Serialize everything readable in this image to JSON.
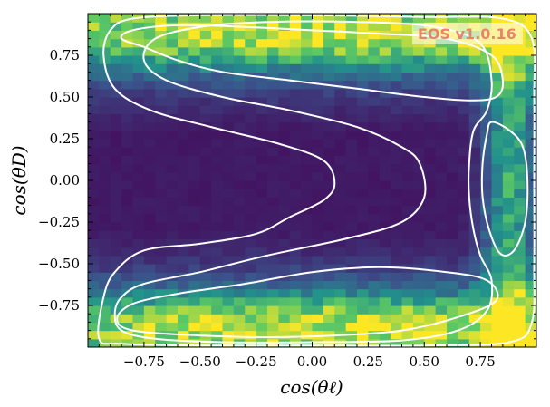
{
  "chart_data": {
    "type": "heatmap",
    "title": "",
    "xlabel": "cos(θℓ)",
    "ylabel": "cos(θD)",
    "xlim": [
      -1,
      1
    ],
    "ylim": [
      -1,
      1
    ],
    "x_ticks": [
      -0.75,
      -0.5,
      -0.25,
      0.0,
      0.25,
      0.5,
      0.75
    ],
    "x_tick_labels": [
      "−0.75",
      "−0.50",
      "−0.25",
      "0.00",
      "0.25",
      "0.50",
      "0.75"
    ],
    "y_ticks": [
      0.75,
      0.5,
      0.25,
      0.0,
      -0.25,
      -0.5,
      -0.75
    ],
    "y_tick_labels": [
      "0.75",
      "0.50",
      "0.25",
      "0.00",
      "−0.25",
      "−0.50",
      "−0.75"
    ],
    "bins": [
      40,
      40
    ],
    "colormap": [
      "#440154",
      "#3b528b",
      "#21918c",
      "#5ec962",
      "#fde725"
    ],
    "contour_color": "#ffffff",
    "grid": false,
    "watermark": "EOS v1.0.16",
    "watermark_color": "#e8846a",
    "contours": [
      {
        "name": "inner-top",
        "points": [
          [
            -0.85,
            0.85
          ],
          [
            -0.8,
            0.9
          ],
          [
            -0.6,
            0.93
          ],
          [
            -0.3,
            0.92
          ],
          [
            0.0,
            0.9
          ],
          [
            0.3,
            0.88
          ],
          [
            0.6,
            0.85
          ],
          [
            0.8,
            0.75
          ],
          [
            0.85,
            0.6
          ],
          [
            0.82,
            0.5
          ],
          [
            0.7,
            0.48
          ],
          [
            0.5,
            0.5
          ],
          [
            0.2,
            0.55
          ],
          [
            -0.1,
            0.6
          ],
          [
            -0.4,
            0.65
          ],
          [
            -0.6,
            0.72
          ],
          [
            -0.75,
            0.8
          ]
        ]
      },
      {
        "name": "inner-bottom",
        "points": [
          [
            -0.87,
            -0.83
          ],
          [
            -0.8,
            -0.9
          ],
          [
            -0.5,
            -0.93
          ],
          [
            -0.2,
            -0.94
          ],
          [
            0.1,
            -0.93
          ],
          [
            0.4,
            -0.9
          ],
          [
            0.65,
            -0.82
          ],
          [
            0.82,
            -0.72
          ],
          [
            0.78,
            -0.6
          ],
          [
            0.6,
            -0.55
          ],
          [
            0.3,
            -0.52
          ],
          [
            0.0,
            -0.55
          ],
          [
            -0.3,
            -0.62
          ],
          [
            -0.6,
            -0.68
          ],
          [
            -0.8,
            -0.74
          ]
        ]
      },
      {
        "name": "inner-right",
        "points": [
          [
            0.8,
            0.35
          ],
          [
            0.88,
            0.3
          ],
          [
            0.94,
            0.2
          ],
          [
            0.96,
            0.0
          ],
          [
            0.95,
            -0.25
          ],
          [
            0.9,
            -0.42
          ],
          [
            0.84,
            -0.44
          ],
          [
            0.79,
            -0.3
          ],
          [
            0.76,
            -0.1
          ],
          [
            0.76,
            0.1
          ],
          [
            0.78,
            0.28
          ]
        ]
      },
      {
        "name": "outer",
        "points": [
          [
            -0.95,
            -0.95
          ],
          [
            -0.93,
            -0.7
          ],
          [
            -0.88,
            -0.55
          ],
          [
            -0.75,
            -0.42
          ],
          [
            -0.5,
            -0.38
          ],
          [
            -0.25,
            -0.32
          ],
          [
            -0.1,
            -0.22
          ],
          [
            0.05,
            -0.12
          ],
          [
            0.1,
            -0.02
          ],
          [
            0.05,
            0.12
          ],
          [
            -0.15,
            0.22
          ],
          [
            -0.45,
            0.32
          ],
          [
            -0.72,
            0.42
          ],
          [
            -0.88,
            0.55
          ],
          [
            -0.93,
            0.75
          ],
          [
            -0.9,
            0.9
          ],
          [
            -0.8,
            0.97
          ],
          [
            -0.5,
            0.99
          ],
          [
            0.0,
            0.99
          ],
          [
            0.5,
            0.98
          ],
          [
            0.85,
            0.97
          ],
          [
            0.98,
            0.85
          ],
          [
            0.99,
            0.5
          ],
          [
            0.99,
            0.0
          ],
          [
            0.99,
            -0.5
          ],
          [
            0.98,
            -0.85
          ],
          [
            0.88,
            -0.97
          ],
          [
            0.5,
            -0.99
          ],
          [
            0.0,
            -0.99
          ],
          [
            -0.5,
            -0.99
          ],
          [
            -0.85,
            -0.98
          ]
        ]
      },
      {
        "name": "middle",
        "points": [
          [
            -0.85,
            -0.9
          ],
          [
            -0.88,
            -0.8
          ],
          [
            -0.85,
            -0.7
          ],
          [
            -0.75,
            -0.62
          ],
          [
            -0.5,
            -0.55
          ],
          [
            -0.2,
            -0.45
          ],
          [
            0.15,
            -0.35
          ],
          [
            0.4,
            -0.25
          ],
          [
            0.5,
            -0.1
          ],
          [
            0.48,
            0.1
          ],
          [
            0.4,
            0.2
          ],
          [
            0.2,
            0.32
          ],
          [
            -0.1,
            0.42
          ],
          [
            -0.4,
            0.5
          ],
          [
            -0.65,
            0.6
          ],
          [
            -0.75,
            0.72
          ],
          [
            -0.7,
            0.85
          ],
          [
            -0.5,
            0.92
          ],
          [
            -0.2,
            0.95
          ],
          [
            0.2,
            0.95
          ],
          [
            0.55,
            0.92
          ],
          [
            0.75,
            0.82
          ],
          [
            0.8,
            0.6
          ],
          [
            0.78,
            0.42
          ],
          [
            0.72,
            0.3
          ],
          [
            0.7,
            0.1
          ],
          [
            0.7,
            -0.1
          ],
          [
            0.72,
            -0.3
          ],
          [
            0.75,
            -0.45
          ],
          [
            0.8,
            -0.6
          ],
          [
            0.78,
            -0.78
          ],
          [
            0.65,
            -0.9
          ],
          [
            0.4,
            -0.96
          ],
          [
            0.0,
            -0.97
          ],
          [
            -0.4,
            -0.97
          ],
          [
            -0.7,
            -0.95
          ]
        ]
      }
    ]
  }
}
